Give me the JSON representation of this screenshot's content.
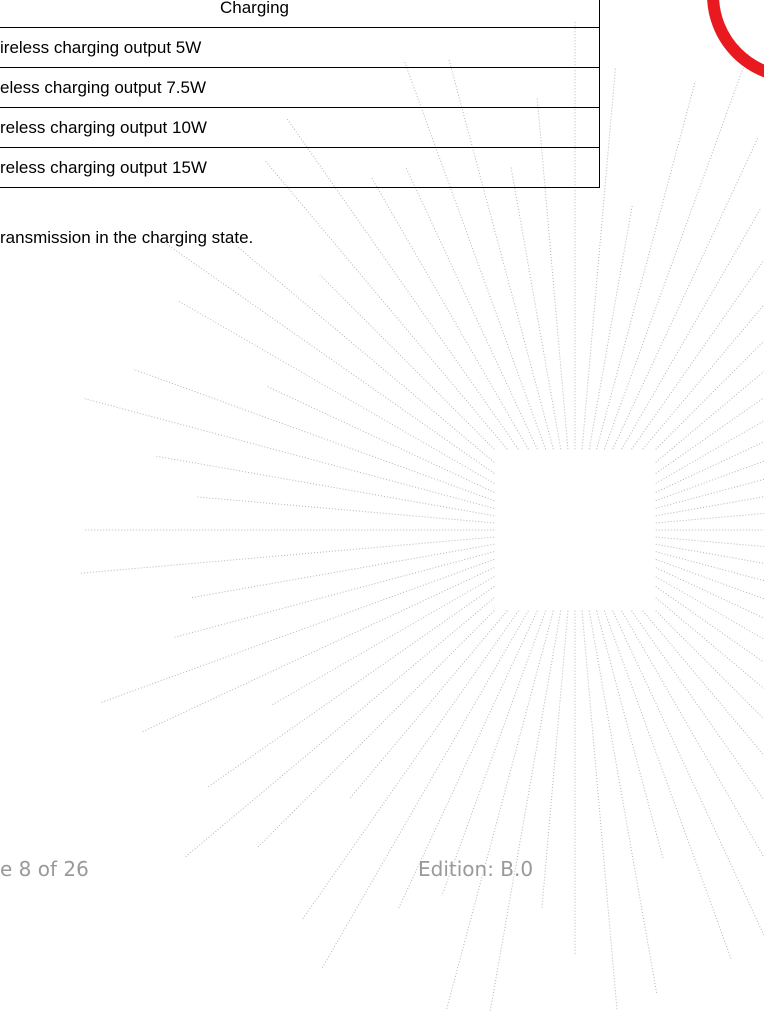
{
  "table": {
    "header": "Charging",
    "rows": [
      "ireless charging output 5W",
      "eless charging output 7.5W",
      "reless charging output 10W",
      "reless charging output 15W"
    ]
  },
  "note": "ransmission in the charging state.",
  "footer": {
    "page": "e 8 of 26",
    "edition": "Edition: B.0"
  }
}
